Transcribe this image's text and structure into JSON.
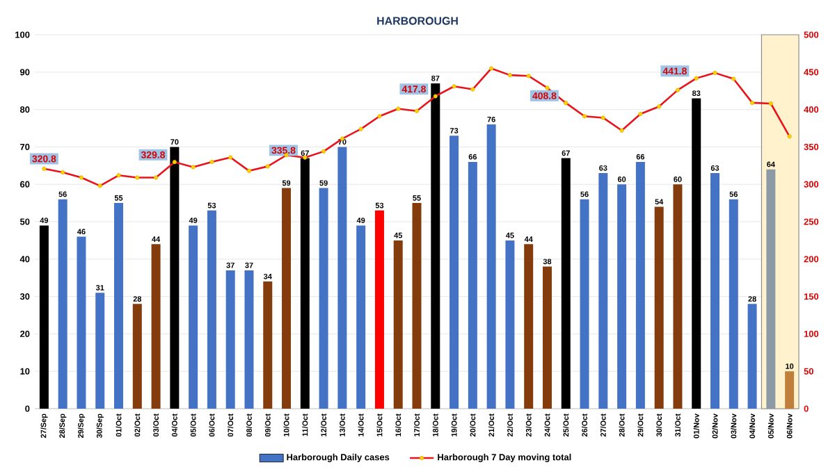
{
  "chart_data": {
    "type": "bar",
    "title": "HARBOROUGH",
    "categories": [
      "27/Sep",
      "28/Sep",
      "29/Sep",
      "30/Sep",
      "01/Oct",
      "02/Oct",
      "03/Oct",
      "04/Oct",
      "05/Oct",
      "06/Oct",
      "07/Oct",
      "08/Oct",
      "09/Oct",
      "10/Oct",
      "11/Oct",
      "12/Oct",
      "13/Oct",
      "14/Oct",
      "15/Oct",
      "16/Oct",
      "17/Oct",
      "18/Oct",
      "19/Oct",
      "20/Oct",
      "21/Oct",
      "22/Oct",
      "23/Oct",
      "24/Oct",
      "25/Oct",
      "26/Oct",
      "27/Oct",
      "28/Oct",
      "29/Oct",
      "30/Oct",
      "31/Oct",
      "01/Nov",
      "02/Nov",
      "03/Nov",
      "04/Nov",
      "05/Nov",
      "06/Nov"
    ],
    "series": [
      {
        "name": "Harborough Daily cases",
        "color": "#4472c4",
        "values": [
          49,
          56,
          46,
          31,
          55,
          28,
          44,
          70,
          49,
          53,
          37,
          37,
          34,
          59,
          67,
          59,
          70,
          49,
          53,
          45,
          55,
          87,
          73,
          66,
          76,
          45,
          44,
          38,
          67,
          56,
          63,
          60,
          66,
          54,
          60,
          83,
          63,
          56,
          28,
          64,
          10
        ],
        "value_labels": [
          "49",
          "56",
          "46",
          "31",
          "55",
          "28",
          "44",
          "70",
          "49",
          "53",
          "37",
          "37",
          "34",
          "59",
          "67",
          "59",
          "70",
          "49",
          "53",
          "45",
          "55",
          "87",
          "73",
          "66",
          "76",
          "45",
          "44",
          "38",
          "67",
          "56",
          "63",
          "60",
          "66",
          "54",
          "60",
          "83",
          "63",
          "56",
          "28",
          "64",
          "10"
        ],
        "colors": [
          "#000000",
          "#4472c4",
          "#4472c4",
          "#4472c4",
          "#4472c4",
          "#843c0c",
          "#843c0c",
          "#000000",
          "#4472c4",
          "#4472c4",
          "#4472c4",
          "#4472c4",
          "#843c0c",
          "#843c0c",
          "#000000",
          "#4472c4",
          "#4472c4",
          "#4472c4",
          "#ff0000",
          "#843c0c",
          "#843c0c",
          "#000000",
          "#4472c4",
          "#4472c4",
          "#4472c4",
          "#4472c4",
          "#843c0c",
          "#843c0c",
          "#000000",
          "#4472c4",
          "#4472c4",
          "#4472c4",
          "#4472c4",
          "#843c0c",
          "#843c0c",
          "#000000",
          "#4472c4",
          "#4472c4",
          "#4472c4",
          "#8c9aa6",
          "#c0803c"
        ]
      },
      {
        "name": "Harborough 7 Day moving total",
        "type": "line",
        "axis": "y2",
        "color": "#e8141c",
        "marker": "circle",
        "values": [
          320.8,
          316,
          309,
          298,
          312,
          309,
          309,
          329.8,
          323,
          330,
          336,
          318,
          324,
          339,
          335.8,
          344,
          361,
          374,
          391,
          401,
          398,
          417.8,
          431,
          427,
          455,
          446,
          445,
          429,
          408.8,
          391,
          389,
          372,
          394,
          404,
          426,
          441.8,
          449,
          441,
          409,
          408,
          364
        ],
        "value_labels": [
          "320.8",
          null,
          null,
          null,
          null,
          null,
          null,
          "329.8",
          null,
          null,
          null,
          null,
          null,
          null,
          "335.8",
          null,
          null,
          null,
          null,
          null,
          null,
          "417.8",
          null,
          null,
          null,
          null,
          null,
          null,
          "408.8",
          null,
          null,
          null,
          null,
          null,
          null,
          "441.8",
          null,
          null,
          null,
          null,
          null
        ]
      }
    ],
    "ylim": [
      0,
      100
    ],
    "yticks": [
      0,
      10,
      20,
      30,
      40,
      50,
      60,
      70,
      80,
      90,
      100
    ],
    "y2lim": [
      0,
      500
    ],
    "y2ticks": [
      0,
      50,
      100,
      150,
      200,
      250,
      300,
      350,
      400,
      450,
      500
    ],
    "grid": "y",
    "legend": "bottom",
    "bands": [
      {
        "axis": "x",
        "from": "05/Nov",
        "to": "06/Nov",
        "color": "#fff2cc"
      }
    ]
  }
}
